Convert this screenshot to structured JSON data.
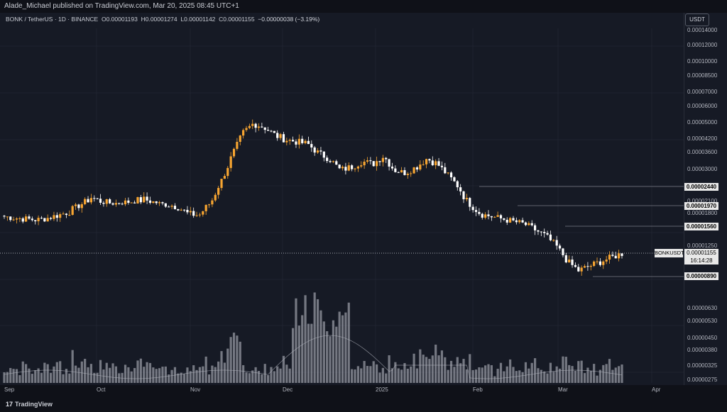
{
  "header": {
    "published_text": "Alade_Michael published on TradingView.com, Mar 20, 2025 08:45 UTC+1"
  },
  "symbol_bar": {
    "symbol": "BONK / TetherUS · 1D · BINANCE",
    "open_label": "O",
    "open": "0.00001193",
    "high_label": "H",
    "high": "0.00001274",
    "low_label": "L",
    "low": "0.00001142",
    "close_label": "C",
    "close": "0.00001155",
    "change": "−0.00000038 (−3.19%)"
  },
  "currency_button": "USDT",
  "y_ticks": [
    "0.00014000",
    "0.00012000",
    "0.00010000",
    "0.00008500",
    "0.00007000",
    "0.00006000",
    "0.00005000",
    "0.00004200",
    "0.00003600",
    "0.00003000",
    "0.00002100",
    "0.00001800",
    "0.00001250",
    "0.00000630",
    "0.00000530",
    "0.00000450",
    "0.00000380",
    "0.00000325",
    "0.00000275"
  ],
  "price_levels": [
    "0.00002440",
    "0.00001970",
    "0.00001560",
    "0.00000890"
  ],
  "current_price": {
    "symbol": "BONKUSDT",
    "price": "0.00001155",
    "countdown": "16:14:28"
  },
  "x_ticks": [
    "Sep",
    "Oct",
    "Nov",
    "Dec",
    "2025",
    "Feb",
    "Mar",
    "Apr"
  ],
  "footer": {
    "brand": "TradingView",
    "logo_glyph": "17"
  },
  "colors": {
    "up": "#f7a531",
    "down": "#ffffff",
    "volume": "#9598a1",
    "background": "#161a25"
  },
  "chart_data": {
    "type": "candlestick",
    "note_series": "daily BONK/USDT price (approximate, read from candle bodies)",
    "x": [
      "Sep",
      "Oct",
      "Nov",
      "Dec",
      "2025",
      "Feb",
      "Mar",
      "Apr"
    ],
    "close_path": [
      1.75e-05,
      1.72e-05,
      1.7e-05,
      1.68e-05,
      1.72e-05,
      1.78e-05,
      1.85e-05,
      2e-05,
      2.2e-05,
      2.1e-05,
      2.05e-05,
      2.08e-05,
      2.12e-05,
      2.15e-05,
      2.08e-05,
      2e-05,
      1.95e-05,
      1.8e-05,
      1.78e-05,
      2.05e-05,
      2.6e-05,
      3.5e-05,
      4.5e-05,
      5e-05,
      4.8e-05,
      4.4e-05,
      4.2e-05,
      4.1e-05,
      4e-05,
      3.6e-05,
      3.4e-05,
      3e-05,
      3.1e-05,
      3.3e-05,
      3.2e-05,
      3.5e-05,
      3e-05,
      2.9e-05,
      3.1e-05,
      3.4e-05,
      3.2e-05,
      2.8e-05,
      2.4e-05,
      2e-05,
      1.8e-05,
      1.75e-05,
      1.7e-05,
      1.65e-05,
      1.6e-05,
      1.5e-05,
      1.4e-05,
      1.25e-05,
      1.05e-05,
      9.5e-06,
      1e-05,
      1.05e-05,
      1.1e-05,
      1.15e-05
    ]
  }
}
